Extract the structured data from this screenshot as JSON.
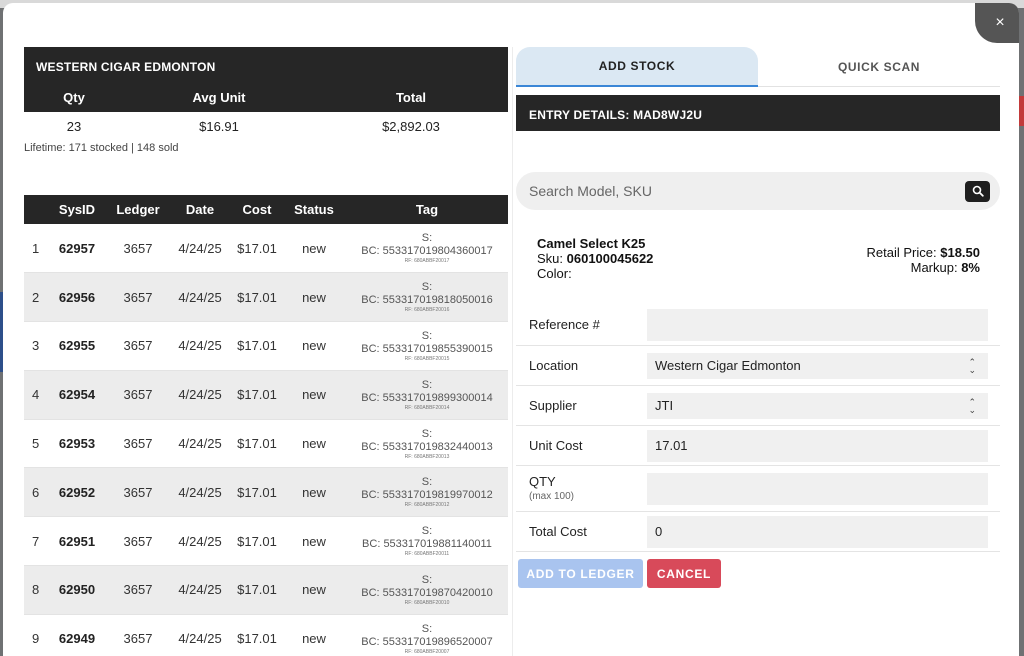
{
  "left": {
    "store_name": "WESTERN CIGAR EDMONTON",
    "summary": {
      "headers": [
        "Qty",
        "Avg Unit",
        "Total"
      ],
      "values": [
        "23",
        "$16.91",
        "$2,892.03"
      ],
      "lifetime": "Lifetime: 171 stocked | 148 sold"
    },
    "table": {
      "headers": [
        "",
        "SysID",
        "Ledger",
        "Date",
        "Cost",
        "Status",
        "Tag"
      ],
      "rows": [
        {
          "n": "1",
          "sysid": "62957",
          "ledger": "3657",
          "date": "4/24/25",
          "cost": "$17.01",
          "status": "new",
          "tag_s": "S:",
          "tag_bc": "BC: 553317019804360017",
          "tag_rf": "RF: 680ABBF20017"
        },
        {
          "n": "2",
          "sysid": "62956",
          "ledger": "3657",
          "date": "4/24/25",
          "cost": "$17.01",
          "status": "new",
          "tag_s": "S:",
          "tag_bc": "BC: 553317019818050016",
          "tag_rf": "RF: 680ABBF20016"
        },
        {
          "n": "3",
          "sysid": "62955",
          "ledger": "3657",
          "date": "4/24/25",
          "cost": "$17.01",
          "status": "new",
          "tag_s": "S:",
          "tag_bc": "BC: 553317019855390015",
          "tag_rf": "RF: 680ABBF20015"
        },
        {
          "n": "4",
          "sysid": "62954",
          "ledger": "3657",
          "date": "4/24/25",
          "cost": "$17.01",
          "status": "new",
          "tag_s": "S:",
          "tag_bc": "BC: 553317019899300014",
          "tag_rf": "RF: 680ABBF20014"
        },
        {
          "n": "5",
          "sysid": "62953",
          "ledger": "3657",
          "date": "4/24/25",
          "cost": "$17.01",
          "status": "new",
          "tag_s": "S:",
          "tag_bc": "BC: 553317019832440013",
          "tag_rf": "RF: 680ABBF20013"
        },
        {
          "n": "6",
          "sysid": "62952",
          "ledger": "3657",
          "date": "4/24/25",
          "cost": "$17.01",
          "status": "new",
          "tag_s": "S:",
          "tag_bc": "BC: 553317019819970012",
          "tag_rf": "RF: 680ABBF20012"
        },
        {
          "n": "7",
          "sysid": "62951",
          "ledger": "3657",
          "date": "4/24/25",
          "cost": "$17.01",
          "status": "new",
          "tag_s": "S:",
          "tag_bc": "BC: 553317019881140011",
          "tag_rf": "RF: 680ABBF20011"
        },
        {
          "n": "8",
          "sysid": "62950",
          "ledger": "3657",
          "date": "4/24/25",
          "cost": "$17.01",
          "status": "new",
          "tag_s": "S:",
          "tag_bc": "BC: 553317019870420010",
          "tag_rf": "RF: 680ABBF20010"
        },
        {
          "n": "9",
          "sysid": "62949",
          "ledger": "3657",
          "date": "4/24/25",
          "cost": "$17.01",
          "status": "new",
          "tag_s": "S:",
          "tag_bc": "BC: 553317019896520007",
          "tag_rf": "RF: 680ABBF20007"
        }
      ]
    }
  },
  "right": {
    "tabs": [
      {
        "label": "ADD STOCK",
        "active": true
      },
      {
        "label": "QUICK SCAN",
        "active": false
      }
    ],
    "entry_title": "ENTRY DETAILS: MAD8WJ2U",
    "search_placeholder": "Search Model, SKU",
    "product": {
      "name": "Camel Select K25",
      "sku_label": "Sku:",
      "sku": "060100045622",
      "color_label": "Color:",
      "retail_label": "Retail Price:",
      "retail": "$18.50",
      "markup_label": "Markup:",
      "markup": "8%"
    },
    "form": {
      "reference_label": "Reference #",
      "reference_value": "",
      "location_label": "Location",
      "location_value": "Western Cigar Edmonton",
      "supplier_label": "Supplier",
      "supplier_value": "JTI",
      "unit_cost_label": "Unit Cost",
      "unit_cost_value": "17.01",
      "qty_label": "QTY",
      "qty_sub": "(max 100)",
      "qty_value": "",
      "total_cost_label": "Total Cost",
      "total_cost_value": "0"
    },
    "buttons": {
      "add_label": "ADD TO LEDGER",
      "cancel_label": "CANCEL"
    }
  },
  "close_label": "×",
  "colors": {
    "header_dark": "#262626",
    "tab_active_bg": "#dbe8f3",
    "tab_accent": "#3a86d6",
    "add_button": "#a9c4ef",
    "cancel_button": "#d84a5a"
  }
}
